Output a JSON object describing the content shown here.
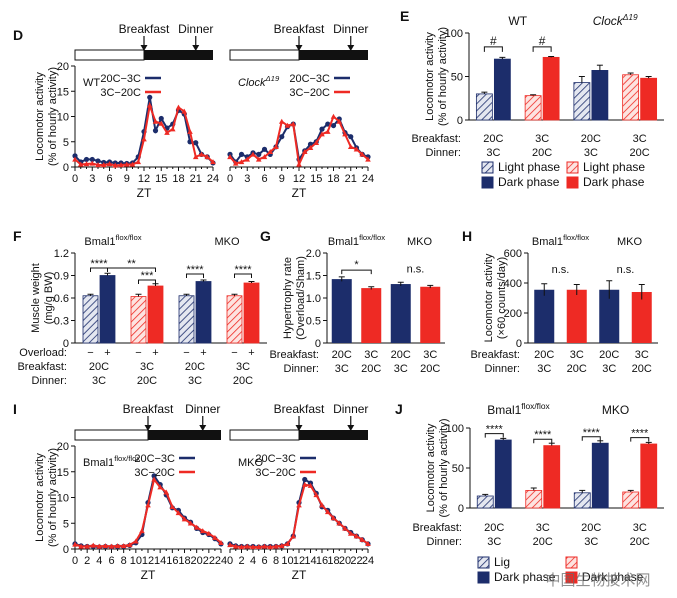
{
  "colors": {
    "navy": "#1c2d6b",
    "red": "#ee2a24",
    "lightNavy": "#dfe3ee",
    "lightRed": "#fbd9d6",
    "black": "#111111"
  },
  "chart_data": [
    {
      "panel": "D",
      "type": "line",
      "xlabel": "ZT",
      "ylabel": [
        "Locomotor activity",
        "(% of hourly activity)"
      ],
      "ylim": [
        0,
        20
      ],
      "yticks": [
        "0",
        "5",
        "10",
        "15",
        "20"
      ],
      "x": [
        0,
        1,
        2,
        3,
        4,
        5,
        6,
        7,
        8,
        9,
        10,
        11,
        12,
        13,
        14,
        15,
        16,
        17,
        18,
        19,
        20,
        21,
        22,
        23,
        24
      ],
      "xticks": [
        "0",
        "3",
        "6",
        "9",
        "12",
        "15",
        "18",
        "21",
        "24"
      ],
      "meal_labels": {
        "breakfast": "Breakfast",
        "dinner": "Dinner"
      },
      "subplots": [
        {
          "genotype": "WT",
          "genotype_sup": "",
          "series": [
            {
              "name": "20C−3C",
              "color": "navy",
              "values": [
                2.2,
                1.0,
                1.5,
                1.5,
                1.2,
                0.9,
                1.0,
                0.8,
                0.8,
                0.7,
                0.8,
                2.0,
                7.0,
                13.8,
                7.2,
                9.6,
                7.7,
                8.5,
                11.2,
                10.5,
                5.0,
                4.8,
                2.5,
                2.0,
                0.8
              ]
            },
            {
              "name": "3C−20C",
              "color": "red",
              "values": [
                1.5,
                0.5,
                0.6,
                0.7,
                0.4,
                0.4,
                0.6,
                0.3,
                0.4,
                0.5,
                0.5,
                1.0,
                5.5,
                12.2,
                9.0,
                8.6,
                6.8,
                7.5,
                11.8,
                11.0,
                7.0,
                2.0,
                2.5,
                2.0,
                1.0
              ]
            }
          ]
        },
        {
          "genotype": "Clock",
          "genotype_sup": "Δ19",
          "series": [
            {
              "name": "20C−3C",
              "color": "navy",
              "values": [
                2.5,
                1.0,
                2.5,
                2.0,
                2.8,
                2.5,
                3.5,
                2.5,
                4.0,
                6.0,
                8.0,
                8.5,
                1.5,
                3.2,
                4.5,
                5.0,
                7.5,
                8.5,
                8.2,
                9.5,
                6.8,
                6.0,
                3.8,
                2.5,
                2.0
              ]
            },
            {
              "name": "3C−20C",
              "color": "red",
              "values": [
                2.0,
                0.7,
                1.0,
                1.5,
                2.5,
                1.5,
                2.0,
                3.0,
                4.0,
                9.0,
                8.2,
                8.5,
                0.5,
                3.0,
                3.8,
                4.8,
                6.5,
                7.0,
                10.0,
                9.0,
                6.5,
                4.0,
                3.5,
                2.5,
                1.5
              ]
            }
          ]
        }
      ]
    },
    {
      "panel": "E",
      "type": "bar",
      "ylabel": [
        "Locomotor activity",
        "(% of hourly activity)"
      ],
      "ylim": [
        0,
        100
      ],
      "yticks": [
        "0",
        "50",
        "100"
      ],
      "group_labels": [
        {
          "text": "WT",
          "sup": ""
        },
        {
          "text": "Clock",
          "sup": "Δ19"
        }
      ],
      "row_labels": [
        "Breakfast:",
        "Dinner:"
      ],
      "categories": [
        [
          "20C",
          "3C"
        ],
        [
          "3C",
          "20C"
        ],
        [
          "20C",
          "3C"
        ],
        [
          "3C",
          "20C"
        ]
      ],
      "series": [
        {
          "name": "Light phase",
          "values": [
            30,
            28,
            43,
            52
          ],
          "errors": [
            2,
            1,
            7,
            2
          ]
        },
        {
          "name": "Dark phase",
          "values": [
            70,
            72,
            57,
            48
          ],
          "errors": [
            2,
            1,
            6,
            2
          ]
        }
      ],
      "pair_colors": [
        "navy",
        "red",
        "navy",
        "red"
      ],
      "significance": [
        {
          "cat": 0,
          "label": "#"
        },
        {
          "cat": 1,
          "label": "#"
        }
      ],
      "legend": [
        {
          "label": "Light phase",
          "swatch": "hatch-navy"
        },
        {
          "label": "Light phase",
          "swatch": "hatch-red"
        },
        {
          "label": "Dark phase",
          "swatch": "navy"
        },
        {
          "label": "Dark phase",
          "swatch": "red"
        }
      ]
    },
    {
      "panel": "F",
      "type": "bar",
      "ylabel": [
        "Muscle weight",
        "(mg/g BW)"
      ],
      "ylim": [
        0,
        1.2
      ],
      "yticks": [
        "0",
        "0.3",
        "0.6",
        "0.9",
        "1.2"
      ],
      "group_labels": [
        {
          "text": "Bmal1",
          "sup": "flox/flox"
        },
        {
          "text": "MKO",
          "sup": ""
        }
      ],
      "row_labels": [
        "Overload:",
        "Breakfast:",
        "Dinner:"
      ],
      "overload_signs": [
        "−",
        "+"
      ],
      "categories": [
        [
          "20C",
          "3C"
        ],
        [
          "3C",
          "20C"
        ],
        [
          "20C",
          "3C"
        ],
        [
          "3C",
          "20C"
        ]
      ],
      "series": [
        {
          "name": "Sham",
          "values": [
            0.63,
            0.62,
            0.63,
            0.63
          ],
          "errors": [
            0.02,
            0.03,
            0.02,
            0.02
          ]
        },
        {
          "name": "Overload",
          "values": [
            0.9,
            0.76,
            0.82,
            0.8
          ],
          "errors": [
            0.03,
            0.03,
            0.02,
            0.02
          ]
        }
      ],
      "pair_colors": [
        "navy",
        "red",
        "navy",
        "red"
      ],
      "significance": [
        {
          "from": [
            0,
            0
          ],
          "to": [
            0,
            1
          ],
          "label": "****",
          "level": 1.0
        },
        {
          "from": [
            1,
            0
          ],
          "to": [
            1,
            1
          ],
          "label": "***",
          "level": 0.84
        },
        {
          "from": [
            0,
            1
          ],
          "to": [
            1,
            1
          ],
          "label": "**",
          "level": 1.0
        },
        {
          "from": [
            2,
            0
          ],
          "to": [
            2,
            1
          ],
          "label": "****",
          "level": 0.92
        },
        {
          "from": [
            3,
            0
          ],
          "to": [
            3,
            1
          ],
          "label": "****",
          "level": 0.92
        }
      ]
    },
    {
      "panel": "G",
      "type": "bar",
      "ylabel": [
        "Hypertrophy rate",
        "(Overload/Sham)"
      ],
      "ylim": [
        0,
        2.0
      ],
      "yticks": [
        "0",
        "0.5",
        "1.0",
        "1.5",
        "2.0"
      ],
      "group_labels": [
        {
          "text": "Bmal1",
          "sup": "flox/flox"
        },
        {
          "text": "MKO",
          "sup": ""
        }
      ],
      "row_labels": [
        "Breakfast:",
        "Dinner:"
      ],
      "categories": [
        [
          "20C",
          "3C"
        ],
        [
          "3C",
          "20C"
        ],
        [
          "20C",
          "3C"
        ],
        [
          "3C",
          "20C"
        ]
      ],
      "values": [
        1.42,
        1.22,
        1.31,
        1.25
      ],
      "errors": [
        0.05,
        0.03,
        0.04,
        0.03
      ],
      "bar_colors": [
        "navy",
        "red",
        "navy",
        "red"
      ],
      "significance": [
        {
          "pair": [
            0,
            1
          ],
          "label": "*"
        },
        {
          "pair": [
            2,
            3
          ],
          "label": "n.s."
        }
      ]
    },
    {
      "panel": "H",
      "type": "bar",
      "ylabel": [
        "Locomotor activity",
        "(×60 counts/day)"
      ],
      "ylim": [
        0,
        600
      ],
      "yticks": [
        "0",
        "200",
        "400",
        "600"
      ],
      "group_labels": [
        {
          "text": "Bmal1",
          "sup": "flox/flox"
        },
        {
          "text": "MKO",
          "sup": ""
        }
      ],
      "row_labels": [
        "Breakfast:",
        "Dinner:"
      ],
      "categories": [
        [
          "20C",
          "3C"
        ],
        [
          "3C",
          "20C"
        ],
        [
          "20C",
          "3C"
        ],
        [
          "3C",
          "20C"
        ]
      ],
      "values": [
        355,
        355,
        355,
        340
      ],
      "errors": [
        40,
        35,
        60,
        50
      ],
      "bar_colors": [
        "navy",
        "red",
        "navy",
        "red"
      ],
      "significance": [
        {
          "pair": [
            0,
            1
          ],
          "label": "n.s."
        },
        {
          "pair": [
            2,
            3
          ],
          "label": "n.s."
        }
      ]
    },
    {
      "panel": "I",
      "type": "line",
      "xlabel": "ZT",
      "ylabel": [
        "Locomotor activity",
        "(% of hourly activity)"
      ],
      "ylim": [
        0,
        20
      ],
      "yticks": [
        "0",
        "5",
        "10",
        "15",
        "20"
      ],
      "x": [
        0,
        1,
        2,
        3,
        4,
        5,
        6,
        7,
        8,
        9,
        10,
        11,
        12,
        13,
        14,
        15,
        16,
        17,
        18,
        19,
        20,
        21,
        22,
        23,
        24
      ],
      "xticks": [
        "0",
        "2",
        "4",
        "6",
        "8",
        "10",
        "12",
        "14",
        "16",
        "18",
        "20",
        "22",
        "24"
      ],
      "meal_labels": {
        "breakfast": "Breakfast",
        "dinner": "Dinner"
      },
      "subplots": [
        {
          "genotype": "Bmal1",
          "genotype_sup": "flox/flox",
          "series": [
            {
              "name": "20C−3C",
              "color": "navy",
              "values": [
                1.0,
                0.6,
                0.5,
                0.5,
                0.4,
                0.5,
                0.4,
                0.5,
                0.5,
                0.7,
                1.2,
                2.8,
                9.0,
                14.2,
                12.5,
                10.5,
                8.0,
                7.5,
                6.0,
                5.2,
                4.0,
                3.2,
                2.8,
                2.0,
                1.0
              ]
            },
            {
              "name": "3C−20C",
              "color": "red",
              "values": [
                0.9,
                0.5,
                0.5,
                0.7,
                0.5,
                0.6,
                0.5,
                0.6,
                0.6,
                0.8,
                1.5,
                3.5,
                8.5,
                13.5,
                12.0,
                11.0,
                8.2,
                7.0,
                5.8,
                5.0,
                4.2,
                3.5,
                3.0,
                2.2,
                1.2
              ]
            }
          ]
        },
        {
          "genotype": "MKO",
          "genotype_sup": "",
          "series": [
            {
              "name": "20C−3C",
              "color": "navy",
              "values": [
                1.0,
                0.6,
                0.5,
                0.5,
                0.5,
                0.4,
                0.5,
                0.5,
                0.5,
                0.6,
                1.0,
                2.5,
                9.0,
                13.5,
                12.8,
                10.8,
                8.2,
                7.5,
                6.0,
                5.0,
                4.0,
                3.2,
                2.5,
                1.8,
                1.0
              ]
            },
            {
              "name": "3C−20C",
              "color": "red",
              "values": [
                0.8,
                0.5,
                0.4,
                0.5,
                0.4,
                0.4,
                0.5,
                0.4,
                0.5,
                0.6,
                1.0,
                2.5,
                8.5,
                12.5,
                12.3,
                10.5,
                8.5,
                7.2,
                6.0,
                5.0,
                4.0,
                3.0,
                2.5,
                1.8,
                1.0
              ]
            }
          ]
        }
      ]
    },
    {
      "panel": "J",
      "type": "bar",
      "ylabel": [
        "Locomotor activity",
        "(% of hourly activity)"
      ],
      "ylim": [
        0,
        100
      ],
      "yticks": [
        "0",
        "50",
        "100"
      ],
      "group_labels": [
        {
          "text": "Bmal1",
          "sup": "flox/flox"
        },
        {
          "text": "MKO",
          "sup": ""
        }
      ],
      "row_labels": [
        "Breakfast:",
        "Dinner:"
      ],
      "categories": [
        [
          "20C",
          "3C"
        ],
        [
          "3C",
          "20C"
        ],
        [
          "20C",
          "3C"
        ],
        [
          "3C",
          "20C"
        ]
      ],
      "series": [
        {
          "name": "Light phase",
          "values": [
            15,
            22,
            19,
            20
          ],
          "errors": [
            2,
            3,
            3,
            2
          ]
        },
        {
          "name": "Dark phase",
          "values": [
            85,
            78,
            81,
            80
          ],
          "errors": [
            2,
            3,
            3,
            2
          ]
        }
      ],
      "pair_colors": [
        "navy",
        "red",
        "navy",
        "red"
      ],
      "significance": [
        {
          "cat": 0,
          "label": "****"
        },
        {
          "cat": 1,
          "label": "****"
        },
        {
          "cat": 2,
          "label": "****"
        },
        {
          "cat": 3,
          "label": "****"
        }
      ],
      "legend": [
        {
          "label": "Lig",
          "swatch": "hatch-navy"
        },
        {
          "label": "",
          "swatch": "hatch-red"
        },
        {
          "label": "Dark phase",
          "swatch": "navy"
        },
        {
          "label": "Dark phase",
          "swatch": "red"
        }
      ]
    }
  ],
  "watermark": "中国生物技术网"
}
